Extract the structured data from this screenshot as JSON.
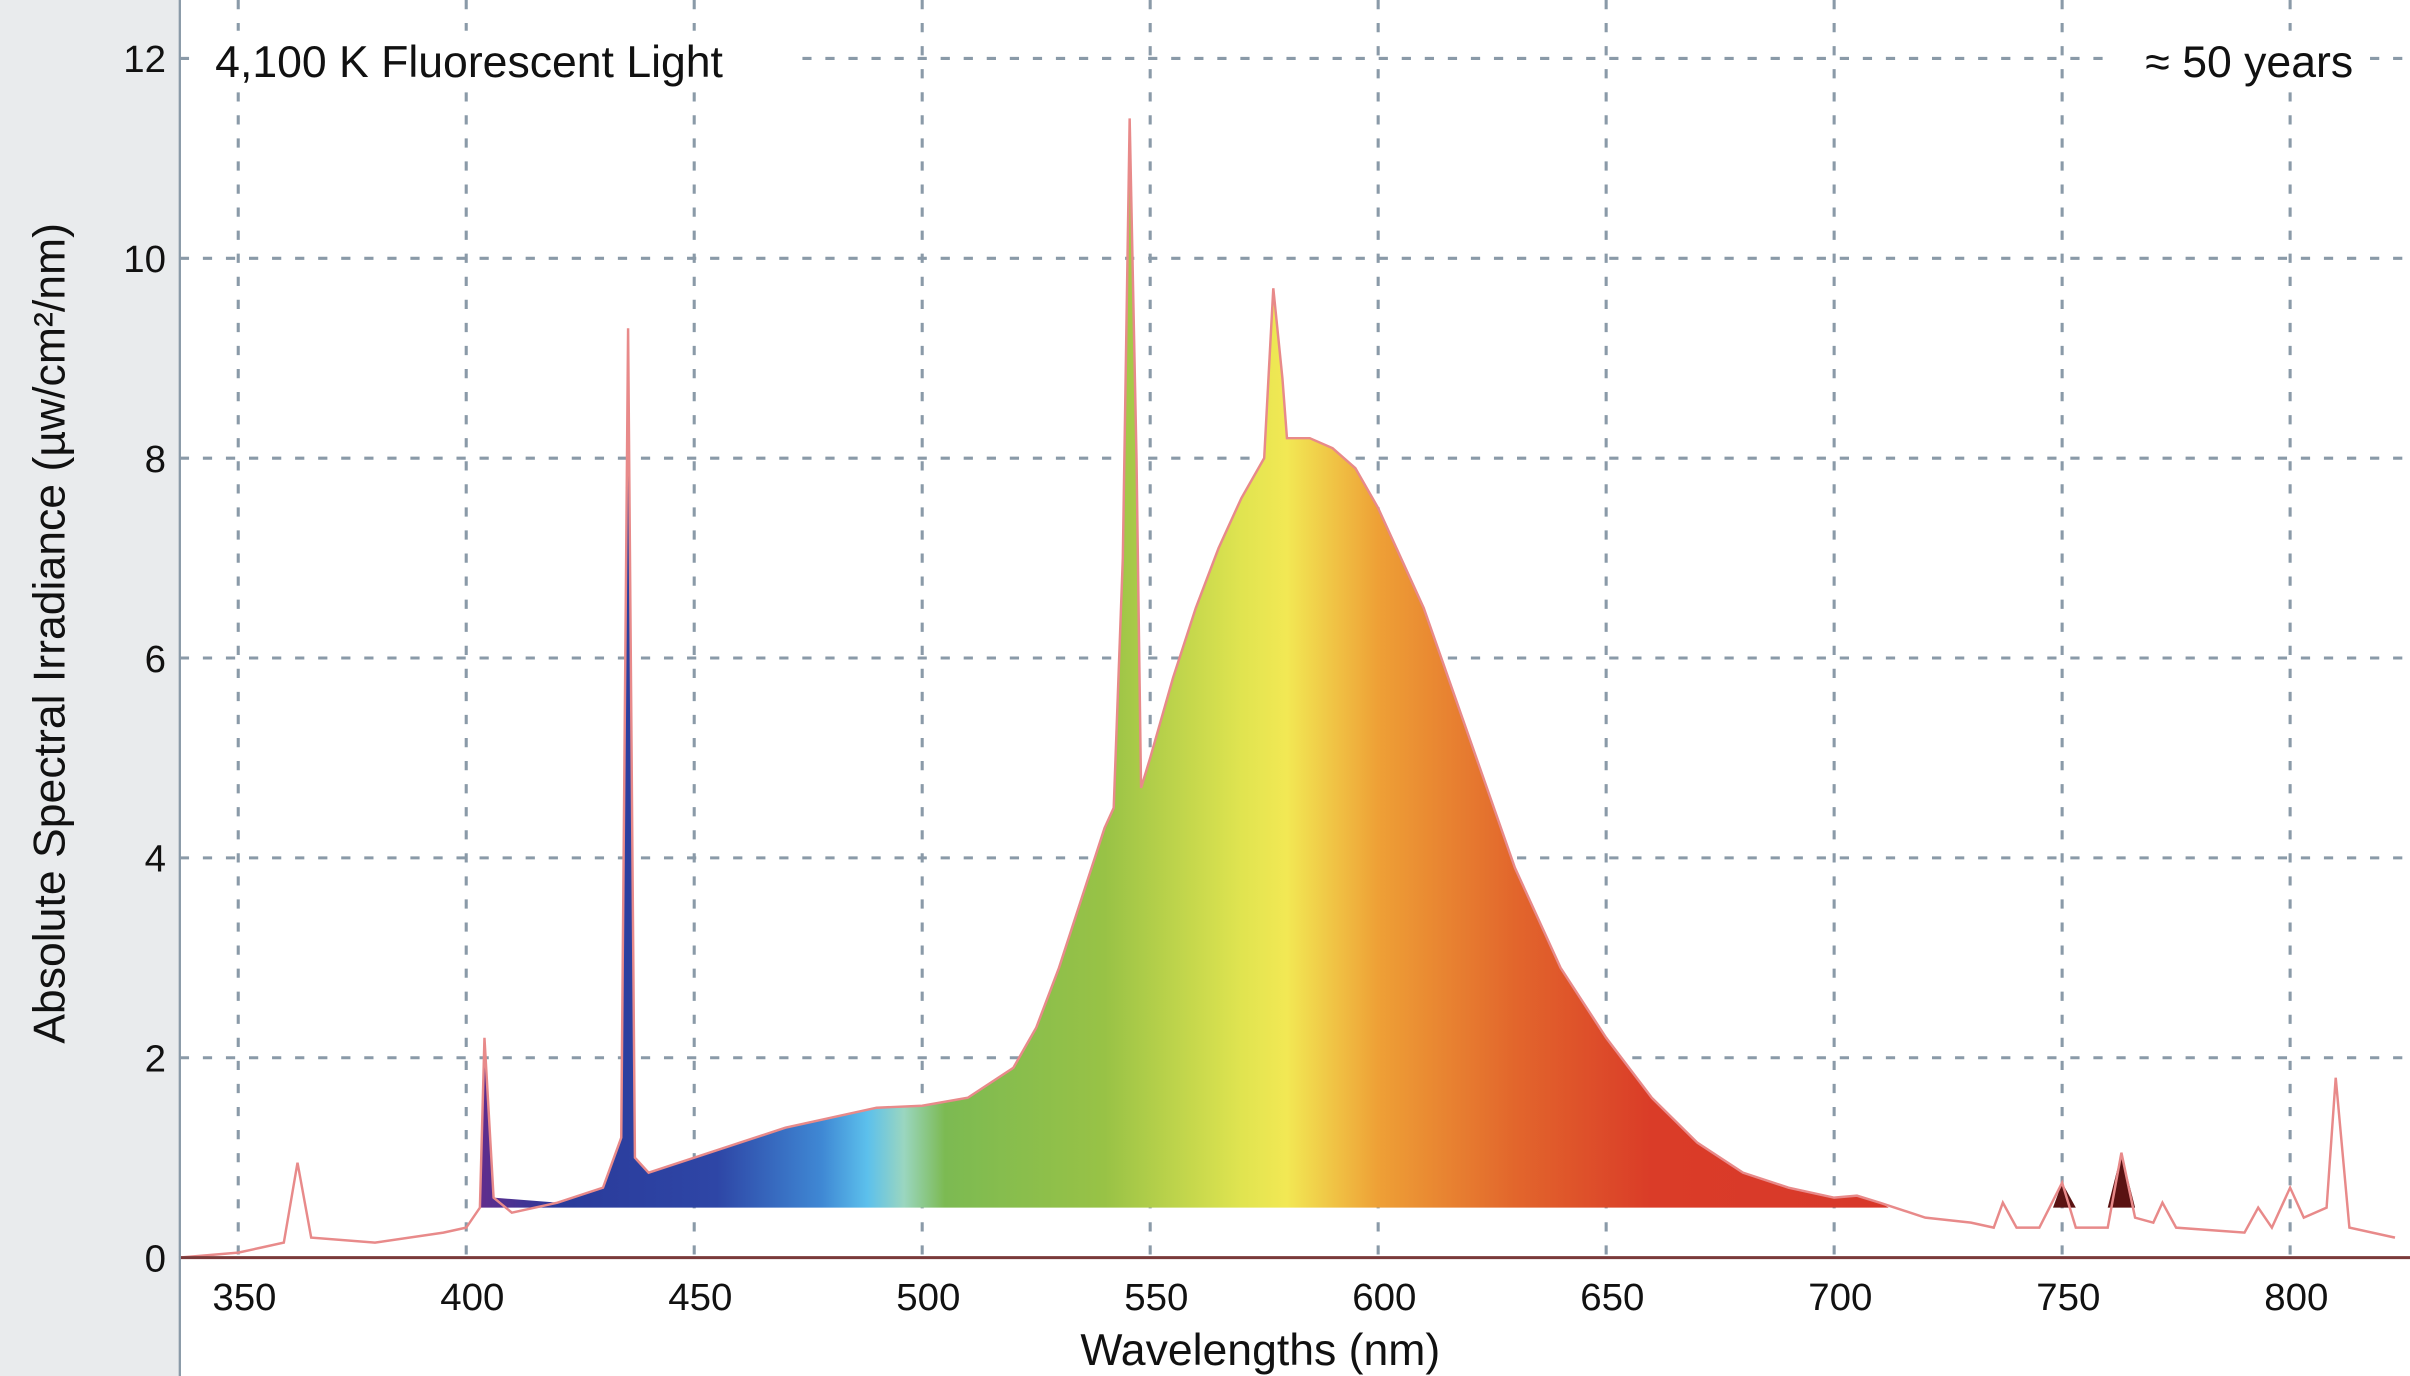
{
  "chart_data": {
    "type": "area",
    "title": "4,100 K Fluorescent Light",
    "annotation": "≈ 50 years",
    "xlabel": "Wavelengths (nm)",
    "ylabel": "Absolute Spectral Irradiance (µw/cm²/nm)",
    "xlim": [
      337,
      823
    ],
    "ylim": [
      0,
      12
    ],
    "xticks": [
      350,
      400,
      450,
      500,
      550,
      600,
      650,
      700,
      750,
      800
    ],
    "yticks": [
      0,
      2,
      4,
      6,
      8,
      10,
      12
    ],
    "grid": true,
    "colored_fill_baseline": 0.5,
    "colors": {
      "line": "#e88a8a",
      "grid": "#8a9aa8",
      "left_panel": "#e9ebed"
    },
    "series": [
      {
        "x": [
          337,
          350,
          355,
          360,
          363,
          366,
          380,
          395,
          400,
          403,
          404,
          406,
          410,
          415,
          420,
          430,
          434,
          435.5,
          437,
          440,
          450,
          460,
          470,
          480,
          490,
          500,
          510,
          520,
          525,
          530,
          535,
          540,
          542,
          544,
          545.5,
          547,
          548,
          550,
          555,
          560,
          565,
          570,
          575,
          577,
          579,
          580,
          585,
          590,
          595,
          600,
          610,
          620,
          630,
          640,
          650,
          660,
          670,
          680,
          690,
          700,
          705,
          710,
          720,
          730,
          735,
          737,
          740,
          745,
          750,
          753,
          760,
          763,
          766,
          770,
          772,
          775,
          790,
          793,
          796,
          800,
          803,
          808,
          810,
          813,
          823
        ],
        "y": [
          0,
          0.05,
          0.1,
          0.15,
          0.95,
          0.2,
          0.15,
          0.25,
          0.3,
          0.5,
          2.2,
          0.6,
          0.45,
          0.5,
          0.55,
          0.7,
          1.2,
          9.3,
          1.0,
          0.85,
          1.0,
          1.15,
          1.3,
          1.4,
          1.5,
          1.52,
          1.6,
          1.9,
          2.3,
          2.9,
          3.6,
          4.3,
          4.5,
          7.0,
          11.4,
          8.0,
          4.7,
          5.0,
          5.8,
          6.5,
          7.1,
          7.6,
          8.0,
          9.7,
          8.8,
          8.2,
          8.2,
          8.1,
          7.9,
          7.5,
          6.5,
          5.2,
          3.9,
          2.9,
          2.2,
          1.6,
          1.15,
          0.85,
          0.7,
          0.6,
          0.62,
          0.55,
          0.4,
          0.35,
          0.3,
          0.55,
          0.3,
          0.3,
          0.75,
          0.3,
          0.3,
          1.05,
          0.4,
          0.35,
          0.55,
          0.3,
          0.25,
          0.5,
          0.3,
          0.7,
          0.4,
          0.5,
          1.8,
          0.3,
          0.2
        ]
      }
    ]
  }
}
